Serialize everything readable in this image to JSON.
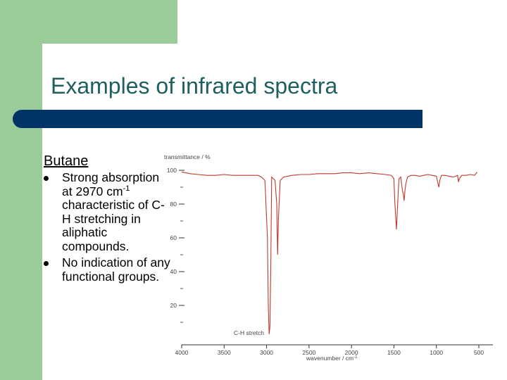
{
  "slide": {
    "title": "Examples of infrared spectra",
    "subtitle": "Butane",
    "bullets": [
      {
        "pre": "Strong absorption at 2970 cm",
        "sup": "-1",
        "post": " characteristic of C-H stretching in aliphatic compounds."
      },
      {
        "pre": "No indication of any functional groups.",
        "sup": "",
        "post": ""
      }
    ]
  },
  "chart_data": {
    "type": "line",
    "title": "",
    "ylabel": "transmittance / %",
    "xlabel": "wavenumber / cm",
    "xlabel_sup": "-1",
    "xlim": [
      4000,
      500
    ],
    "ylim": [
      0,
      100
    ],
    "x_ticks": [
      "4000",
      "3500",
      "3000",
      "2500",
      "2000",
      "1500",
      "1000",
      "500"
    ],
    "y_ticks": [
      "100",
      "80",
      "60",
      "40",
      "20"
    ],
    "annotation": "C-H stretch",
    "line_color": "#c0392b",
    "series": [
      {
        "x": [
          4000,
          3900,
          3800,
          3700,
          3600,
          3500,
          3400,
          3300,
          3200,
          3100,
          3060,
          3020,
          2990,
          2980,
          2970,
          2960,
          2950,
          2940,
          2920,
          2900,
          2880,
          2870,
          2860,
          2840,
          2800,
          2700,
          2600,
          2500,
          2400,
          2300,
          2200,
          2100,
          2000,
          1900,
          1800,
          1700,
          1600,
          1530,
          1500,
          1490,
          1470,
          1460,
          1450,
          1440,
          1420,
          1400,
          1390,
          1380,
          1370,
          1360,
          1340,
          1300,
          1250,
          1200,
          1150,
          1100,
          1050,
          1000,
          980,
          970,
          960,
          940,
          900,
          850,
          800,
          750,
          740,
          730,
          700,
          650,
          600,
          550,
          520
        ],
        "y": [
          99,
          98,
          97.5,
          97,
          97,
          97.5,
          97,
          97,
          97,
          97,
          96,
          94,
          60,
          20,
          3,
          8,
          45,
          96,
          95,
          94,
          80,
          50,
          72,
          94,
          96,
          97,
          97.5,
          97.5,
          98,
          98,
          98,
          98.5,
          98.5,
          98,
          98.5,
          98,
          97.5,
          97,
          95,
          82,
          65,
          76,
          87,
          95,
          96,
          88,
          86,
          82,
          88,
          92,
          96,
          97,
          97,
          96.5,
          97,
          97.5,
          97,
          96.5,
          92,
          90,
          94,
          97,
          97,
          96.5,
          96,
          97,
          93,
          95,
          97,
          97,
          97.5,
          97,
          99
        ]
      }
    ]
  }
}
